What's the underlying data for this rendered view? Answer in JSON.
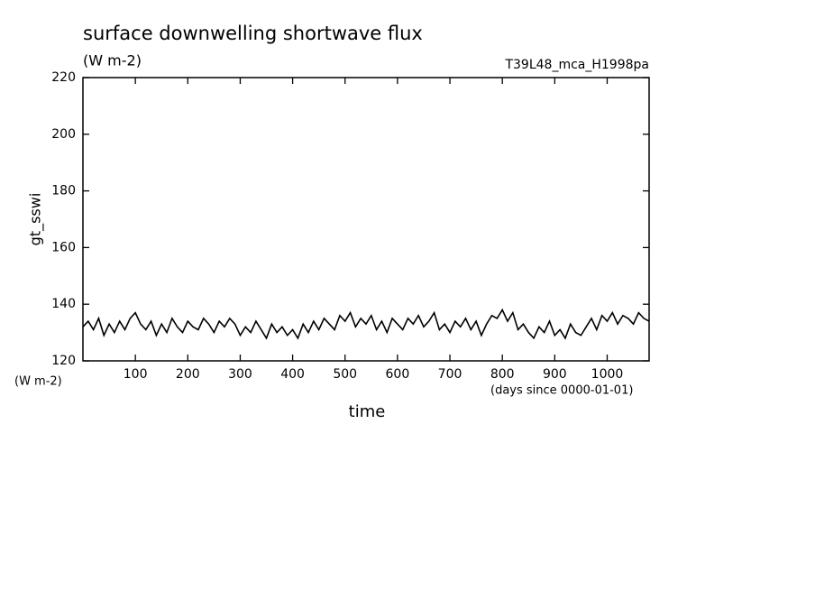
{
  "chart_data": {
    "type": "line",
    "title": "surface downwelling shortwave flux",
    "subtitle": "(W m-2)",
    "run_label": "T39L48_mca_H1998pa",
    "y_label": "gt_sswi",
    "y_unit": "(W m-2)",
    "x_label": "time",
    "x_unit": "(days since 0000-01-01)",
    "xlim": [
      0,
      1080
    ],
    "ylim": [
      120,
      220
    ],
    "xticks": [
      100,
      200,
      300,
      400,
      500,
      600,
      700,
      800,
      900,
      1000
    ],
    "yticks": [
      120,
      140,
      160,
      180,
      200,
      220
    ],
    "x": [
      0,
      10,
      20,
      30,
      40,
      50,
      60,
      70,
      80,
      90,
      100,
      110,
      120,
      130,
      140,
      150,
      160,
      170,
      180,
      190,
      200,
      210,
      220,
      230,
      240,
      250,
      260,
      270,
      280,
      290,
      300,
      310,
      320,
      330,
      340,
      350,
      360,
      370,
      380,
      390,
      400,
      410,
      420,
      430,
      440,
      450,
      460,
      470,
      480,
      490,
      500,
      510,
      520,
      530,
      540,
      550,
      560,
      570,
      580,
      590,
      600,
      610,
      620,
      630,
      640,
      650,
      660,
      670,
      680,
      690,
      700,
      710,
      720,
      730,
      740,
      750,
      760,
      770,
      780,
      790,
      800,
      810,
      820,
      830,
      840,
      850,
      860,
      870,
      880,
      890,
      900,
      910,
      920,
      930,
      940,
      950,
      960,
      970,
      980,
      990,
      1000,
      1010,
      1020,
      1030,
      1040,
      1050,
      1060,
      1070,
      1080
    ],
    "series": [
      {
        "name": "gt_sswi",
        "color": "#000000",
        "values": [
          132,
          134,
          131,
          135,
          129,
          133,
          130,
          134,
          131,
          135,
          137,
          133,
          131,
          134,
          129,
          133,
          130,
          135,
          132,
          130,
          134,
          132,
          131,
          135,
          133,
          130,
          134,
          132,
          135,
          133,
          129,
          132,
          130,
          134,
          131,
          128,
          133,
          130,
          132,
          129,
          131,
          128,
          133,
          130,
          134,
          131,
          135,
          133,
          131,
          136,
          134,
          137,
          132,
          135,
          133,
          136,
          131,
          134,
          130,
          135,
          133,
          131,
          135,
          133,
          136,
          132,
          134,
          137,
          131,
          133,
          130,
          134,
          132,
          135,
          131,
          134,
          129,
          133,
          136,
          135,
          138,
          134,
          137,
          131,
          133,
          130,
          128,
          132,
          130,
          134,
          129,
          131,
          128,
          133,
          130,
          129,
          132,
          135,
          131,
          136,
          134,
          137,
          133,
          136,
          135,
          133,
          137,
          135,
          134
        ]
      }
    ]
  }
}
